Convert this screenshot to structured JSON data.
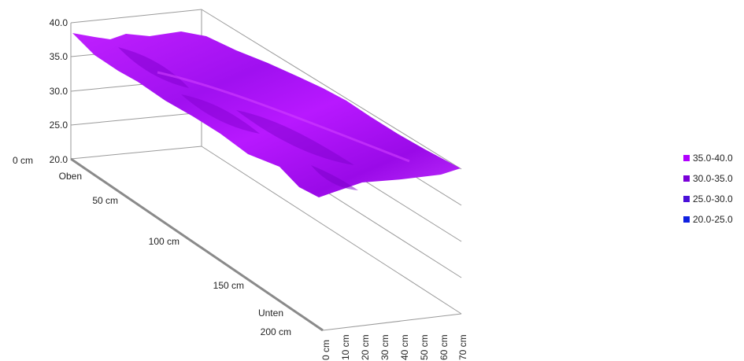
{
  "chart_data": {
    "type": "surface",
    "z_ticks": [
      "40.0",
      "35.0",
      "30.0",
      "25.0",
      "20.0"
    ],
    "depth_ticks": [
      "0 cm",
      "Oben",
      "50 cm",
      "100 cm",
      "150 cm",
      "Unten",
      "200 cm"
    ],
    "x_ticks": [
      "0 cm",
      "10 cm",
      "20 cm",
      "30 cm",
      "40 cm",
      "50 cm",
      "60 cm",
      "70 cm"
    ],
    "zlim": [
      20,
      40
    ],
    "grid": true,
    "legend_position": "right",
    "legend": [
      {
        "label": "35.0-40.0",
        "color": "#b000ff"
      },
      {
        "label": "30.0-35.0",
        "color": "#7a00d8"
      },
      {
        "label": "25.0-30.0",
        "color": "#4a10d8"
      },
      {
        "label": "20.0-25.0",
        "color": "#1020e0"
      }
    ],
    "surface_range": [
      35,
      40
    ]
  }
}
